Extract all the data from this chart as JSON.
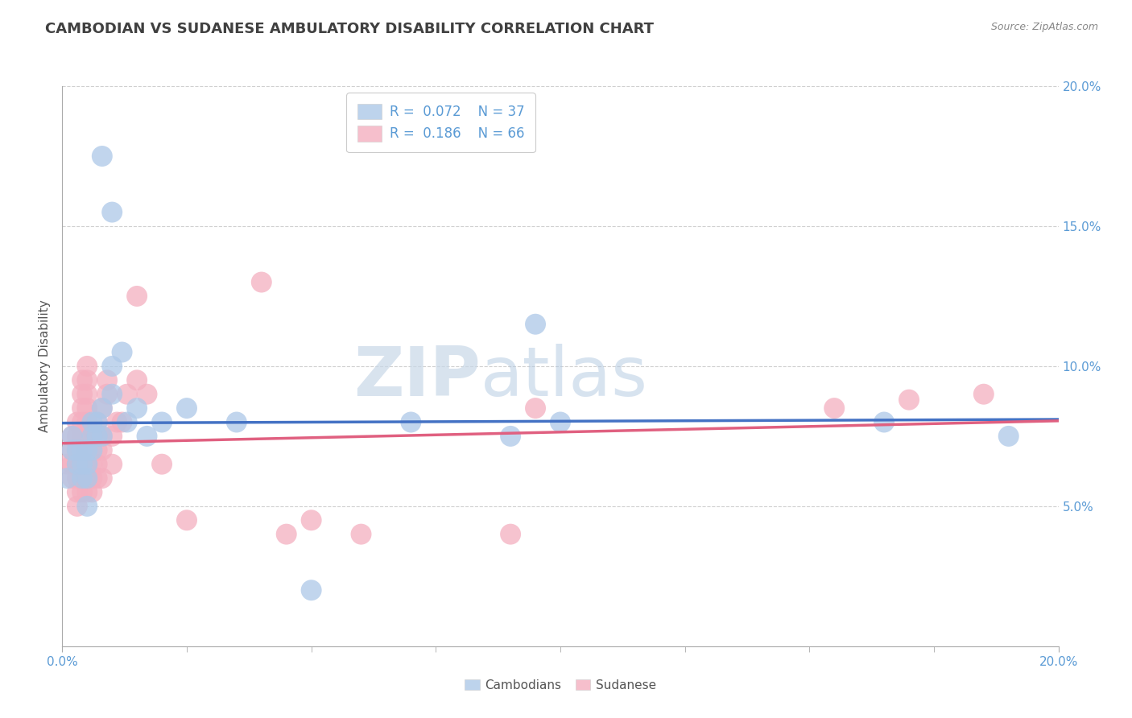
{
  "title": "CAMBODIAN VS SUDANESE AMBULATORY DISABILITY CORRELATION CHART",
  "source": "Source: ZipAtlas.com",
  "ylabel": "Ambulatory Disability",
  "xlim": [
    0.0,
    0.2
  ],
  "ylim": [
    0.0,
    0.2
  ],
  "xticks_minor": [
    0.0,
    0.025,
    0.05,
    0.075,
    0.1,
    0.125,
    0.15,
    0.175,
    0.2
  ],
  "xtick_major_labels": {
    "0.0": "0.0%",
    "0.20": "20.0%"
  },
  "yticks": [
    0.05,
    0.1,
    0.15,
    0.2
  ],
  "ytick_labels": [
    "5.0%",
    "10.0%",
    "15.0%",
    "20.0%"
  ],
  "cambodian_scatter_color": "#adc8e8",
  "sudanese_scatter_color": "#f4afc0",
  "cambodian_line_color": "#4472c4",
  "sudanese_line_color": "#e06080",
  "R_cambodian": 0.072,
  "N_cambodian": 37,
  "R_sudanese": 0.186,
  "N_sudanese": 66,
  "background_color": "#ffffff",
  "grid_color": "#d0d0d0",
  "title_color": "#404040",
  "source_color": "#888888",
  "tick_color": "#5b9bd5",
  "ylabel_color": "#555555",
  "watermark_color": "#dce8f0",
  "cambodian_x": [
    0.001,
    0.002,
    0.002,
    0.003,
    0.003,
    0.004,
    0.004,
    0.004,
    0.005,
    0.005,
    0.005,
    0.005,
    0.006,
    0.006,
    0.006,
    0.007,
    0.007,
    0.008,
    0.008,
    0.008,
    0.01,
    0.01,
    0.01,
    0.012,
    0.013,
    0.015,
    0.017,
    0.02,
    0.025,
    0.035,
    0.05,
    0.07,
    0.09,
    0.095,
    0.1,
    0.165,
    0.19
  ],
  "cambodian_y": [
    0.06,
    0.07,
    0.075,
    0.065,
    0.07,
    0.06,
    0.065,
    0.07,
    0.05,
    0.06,
    0.065,
    0.07,
    0.07,
    0.075,
    0.08,
    0.075,
    0.08,
    0.175,
    0.075,
    0.085,
    0.155,
    0.09,
    0.1,
    0.105,
    0.08,
    0.085,
    0.075,
    0.08,
    0.085,
    0.08,
    0.02,
    0.08,
    0.075,
    0.115,
    0.08,
    0.08,
    0.075
  ],
  "sudanese_x": [
    0.001,
    0.002,
    0.002,
    0.002,
    0.002,
    0.003,
    0.003,
    0.003,
    0.003,
    0.003,
    0.003,
    0.003,
    0.004,
    0.004,
    0.004,
    0.004,
    0.004,
    0.004,
    0.004,
    0.004,
    0.004,
    0.004,
    0.005,
    0.005,
    0.005,
    0.005,
    0.005,
    0.005,
    0.005,
    0.005,
    0.005,
    0.005,
    0.006,
    0.006,
    0.006,
    0.006,
    0.007,
    0.007,
    0.007,
    0.007,
    0.007,
    0.008,
    0.008,
    0.008,
    0.008,
    0.009,
    0.009,
    0.01,
    0.01,
    0.011,
    0.012,
    0.013,
    0.015,
    0.015,
    0.017,
    0.02,
    0.025,
    0.04,
    0.045,
    0.05,
    0.06,
    0.09,
    0.095,
    0.155,
    0.17,
    0.185
  ],
  "sudanese_y": [
    0.065,
    0.06,
    0.065,
    0.07,
    0.075,
    0.05,
    0.055,
    0.06,
    0.065,
    0.07,
    0.075,
    0.08,
    0.055,
    0.06,
    0.065,
    0.07,
    0.075,
    0.08,
    0.085,
    0.09,
    0.095,
    0.06,
    0.055,
    0.06,
    0.065,
    0.07,
    0.075,
    0.08,
    0.085,
    0.09,
    0.095,
    0.1,
    0.055,
    0.06,
    0.065,
    0.075,
    0.06,
    0.065,
    0.07,
    0.075,
    0.08,
    0.06,
    0.07,
    0.075,
    0.085,
    0.09,
    0.095,
    0.065,
    0.075,
    0.08,
    0.08,
    0.09,
    0.095,
    0.125,
    0.09,
    0.065,
    0.045,
    0.13,
    0.04,
    0.045,
    0.04,
    0.04,
    0.085,
    0.085,
    0.088,
    0.09
  ]
}
